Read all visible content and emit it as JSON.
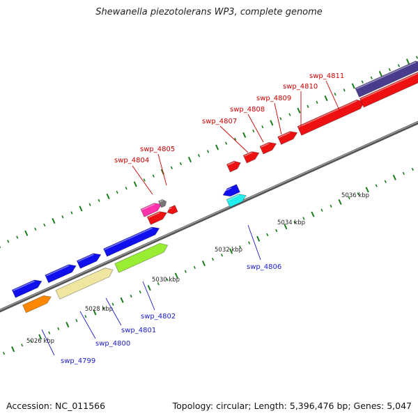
{
  "title": "Shewanella piezotolerans WP3, complete genome",
  "footer": {
    "accession": "Accession: NC_011566",
    "summary": "Topology: circular; Length: 5,396,476 bp; Genes: 5,047"
  },
  "scale_labels": [
    "5026 kbp",
    "5028 kbp",
    "5030 kbp",
    "5032 kbp",
    "5034 kbp",
    "5036 kbp"
  ],
  "gene_labels": {
    "top": [
      "swp_4804",
      "swp_4805",
      "swp_4807",
      "swp_4808",
      "swp_4809",
      "swp_4810",
      "swp_4811"
    ],
    "bottom": [
      "swp_4799",
      "swp_4800",
      "swp_4801",
      "swp_4802",
      "swp_4806"
    ]
  },
  "colors": {
    "top_label": "#cc0000",
    "bottom_label": "#1a1acc",
    "tick": "#1a7a1a",
    "backbone": "#777777",
    "blue": "#1010ee",
    "orange": "#ff8800",
    "khaki": "#efe6a0",
    "lime": "#99ee33",
    "cyan": "#22eeee",
    "red": "#ee1111",
    "pink": "#ff33aa",
    "gray": "#777777",
    "purple": "#4a3c8c"
  }
}
